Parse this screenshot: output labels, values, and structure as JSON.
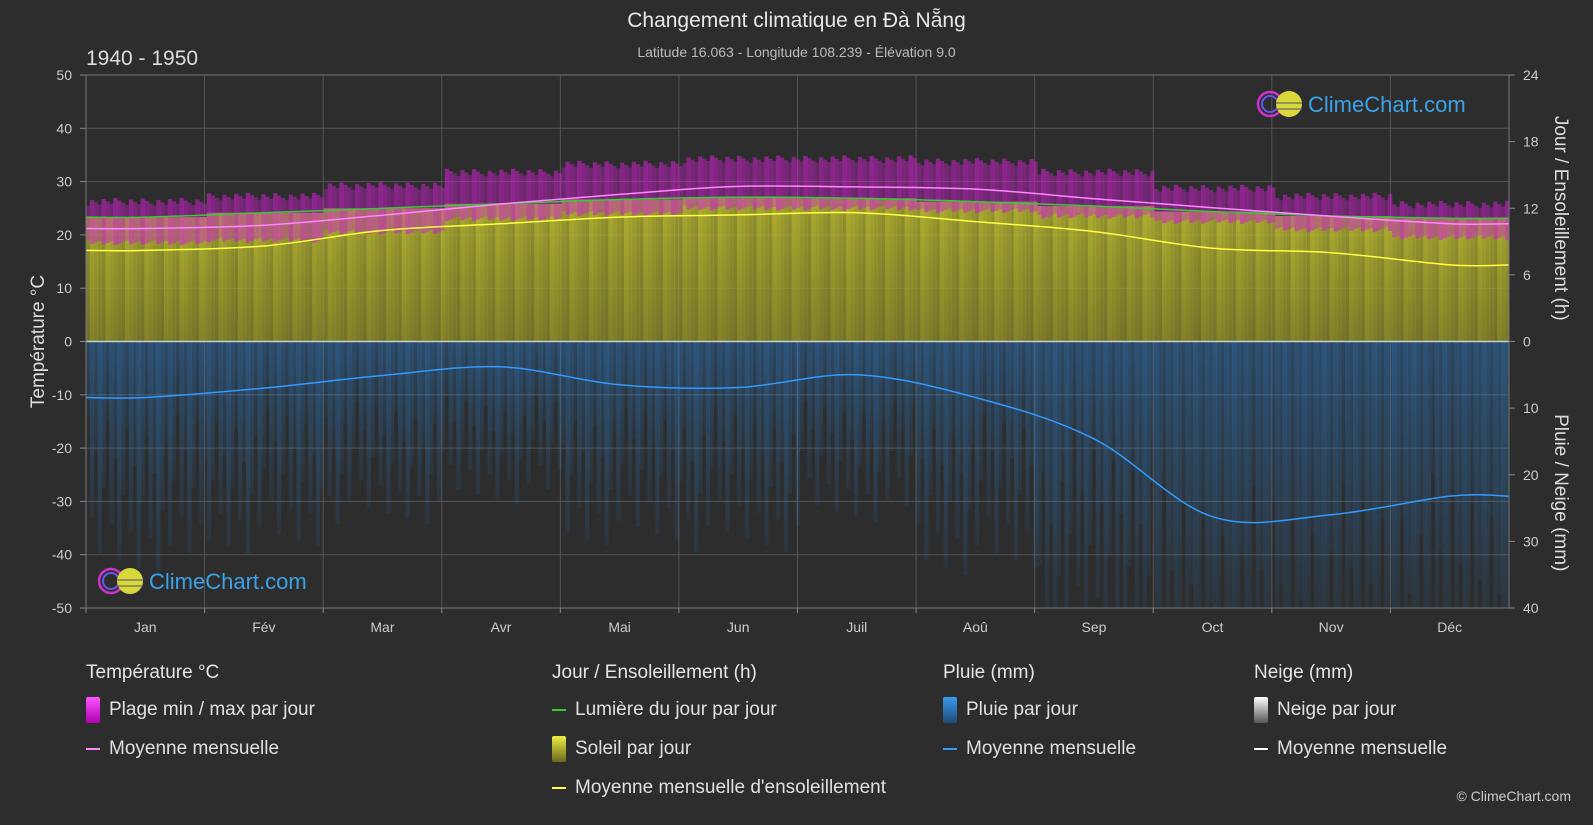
{
  "header": {
    "title": "Changement climatique en Đà Nẵng",
    "subtitle": "Latitude 16.063 - Longitude 108.239 - Élévation 9.0",
    "period": "1940 - 1950"
  },
  "chart_data": {
    "type": "area",
    "categories": [
      "Jan",
      "Fév",
      "Mar",
      "Avr",
      "Mai",
      "Jun",
      "Juil",
      "Aoû",
      "Sep",
      "Oct",
      "Nov",
      "Déc"
    ],
    "left_axis": {
      "label": "Température °C",
      "range": [
        -50,
        50
      ],
      "ticks": [
        "50",
        "40",
        "30",
        "20",
        "10",
        "0",
        "-10",
        "-20",
        "-30",
        "-40",
        "-50"
      ]
    },
    "right_axis_top": {
      "label": "Jour / Ensoleillement (h)",
      "range": [
        0,
        24
      ],
      "ticks": [
        "24",
        "18",
        "12",
        "6",
        "0"
      ]
    },
    "right_axis_bottom": {
      "label": "Pluie / Neige (mm)",
      "range": [
        0,
        40
      ],
      "ticks": [
        "0",
        "10",
        "20",
        "30",
        "40"
      ]
    },
    "series": [
      {
        "name": "Moyenne mensuelle",
        "group": "Température °C",
        "unit": "°C",
        "color": "#ff88ff",
        "values": [
          21.2,
          21.8,
          23.7,
          25.8,
          27.6,
          29.1,
          29.0,
          28.6,
          26.8,
          25.1,
          23.5,
          22.1
        ]
      },
      {
        "name": "Plage min / max par jour",
        "group": "Température °C",
        "unit": "°C",
        "color": "#e020e0",
        "min": [
          19.0,
          19.5,
          21.0,
          23.5,
          24.5,
          25.5,
          25.5,
          25.0,
          24.0,
          23.0,
          21.5,
          20.0
        ],
        "max": [
          25.5,
          26.5,
          28.5,
          31.0,
          32.5,
          33.5,
          33.5,
          33.0,
          31.0,
          28.0,
          26.5,
          25.0
        ]
      },
      {
        "name": "Lumière du jour par jour",
        "group": "Jour / Ensoleillement (h)",
        "unit": "h",
        "color": "#33cc33",
        "values": [
          11.2,
          11.6,
          12.0,
          12.4,
          12.8,
          13.0,
          12.9,
          12.6,
          12.2,
          11.7,
          11.3,
          11.1
        ]
      },
      {
        "name": "Soleil par jour",
        "group": "Jour / Ensoleillement (h)",
        "unit": "h",
        "color": "#b8b830",
        "values": [
          11.2,
          11.6,
          12.0,
          12.4,
          12.8,
          13.0,
          12.9,
          12.6,
          12.2,
          11.7,
          11.3,
          11.1
        ]
      },
      {
        "name": "Moyenne mensuelle d'ensoleillement",
        "group": "Jour / Ensoleillement (h)",
        "unit": "h",
        "color": "#ffff44",
        "values": [
          8.2,
          8.6,
          10.0,
          10.6,
          11.2,
          11.4,
          11.6,
          10.8,
          9.9,
          8.4,
          8.0,
          6.9
        ]
      },
      {
        "name": "Pluie par jour",
        "group": "Pluie (mm)",
        "unit": "mm",
        "color": "#2a7fcf"
      },
      {
        "name": "Moyenne mensuelle",
        "group": "Pluie (mm)",
        "unit": "mm",
        "color": "#3399ff",
        "values": [
          8.4,
          7.0,
          5.1,
          3.8,
          6.5,
          6.9,
          5.0,
          8.4,
          14.6,
          26.3,
          26.0,
          23.2
        ]
      },
      {
        "name": "Neige par jour",
        "group": "Neige (mm)",
        "unit": "mm",
        "color": "#dddddd"
      },
      {
        "name": "Moyenne mensuelle",
        "group": "Neige (mm)",
        "unit": "mm",
        "color": "#ffffff",
        "values": [
          0,
          0,
          0,
          0,
          0,
          0,
          0,
          0,
          0,
          0,
          0,
          0
        ]
      }
    ],
    "grid": true
  },
  "watermark": {
    "text": "ClimeChart.com"
  },
  "legend": {
    "temp": {
      "title": "Température °C",
      "item1": "Plage min / max par jour",
      "item2": "Moyenne mensuelle"
    },
    "sun": {
      "title": "Jour / Ensoleillement (h)",
      "item1": "Lumière du jour par jour",
      "item2": "Soleil par jour",
      "item3": "Moyenne mensuelle d'ensoleillement"
    },
    "rain": {
      "title": "Pluie (mm)",
      "item1": "Pluie par jour",
      "item2": "Moyenne mensuelle"
    },
    "snow": {
      "title": "Neige (mm)",
      "item1": "Neige par jour",
      "item2": "Moyenne mensuelle"
    }
  },
  "footer": {
    "copyright": "© ClimeChart.com"
  },
  "colors": {
    "background": "#2d2d2d",
    "grid": "#5a5a5a",
    "temp_band": "#e020e0",
    "temp_line": "#ff88ff",
    "daylight": "#33cc33",
    "sun_fill": "#b8b830",
    "sun_line": "#ffff44",
    "rain": "#2a7fcf",
    "rain_line": "#3399ff",
    "snow": "#dddddd",
    "snow_line": "#ffffff",
    "brand": "#3aa3e8"
  }
}
